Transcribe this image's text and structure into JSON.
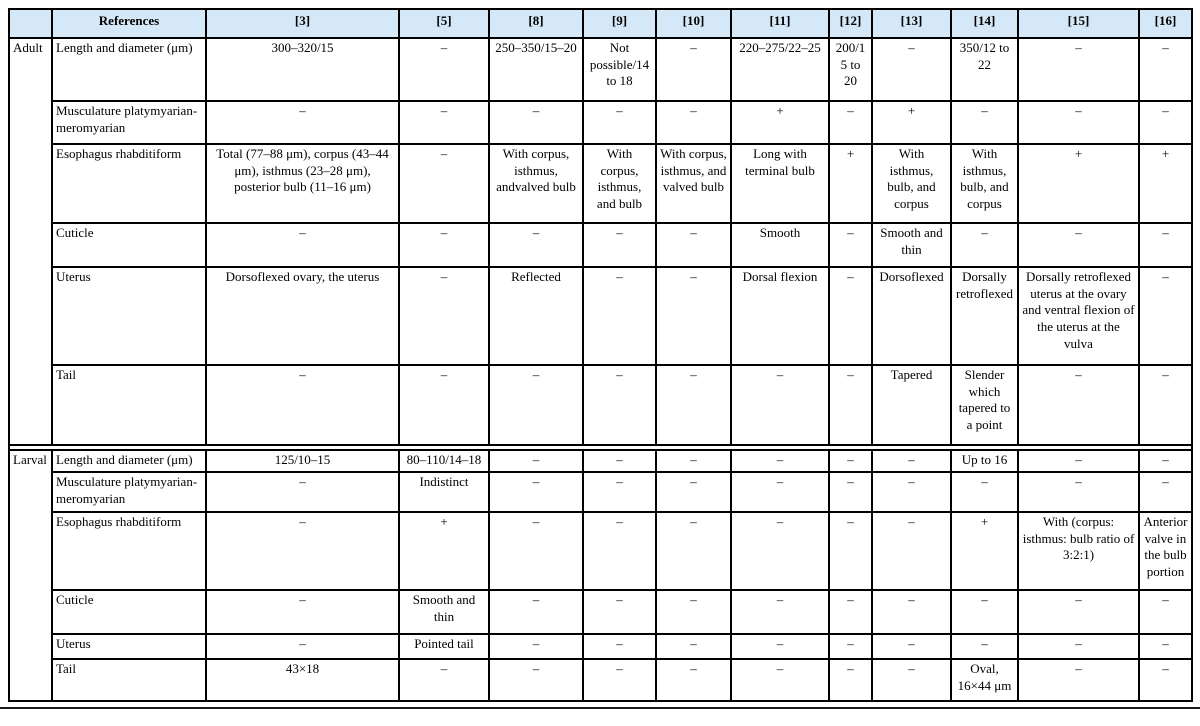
{
  "colors": {
    "header_bg": "#d5e8f7",
    "border": "#000000",
    "text": "#000000"
  },
  "table": {
    "header": {
      "corner": "",
      "references_label": "References",
      "columns": [
        "[3]",
        "[5]",
        "[8]",
        "[9]",
        "[10]",
        "[11]",
        "[12]",
        "[13]",
        "[14]",
        "[15]",
        "[16]"
      ]
    },
    "sections": [
      {
        "group": "Adult",
        "rows": [
          {
            "label": "Length and diameter (μm)",
            "values": [
              "300–320/15",
              "–",
              "250–350/15–20",
              "Not possible/14 to 18",
              "–",
              "220–275/22–25",
              "200/15 to 20",
              "–",
              "350/12 to 22",
              "–",
              "–"
            ]
          },
          {
            "label": "Musculature platymyarian-meromyarian",
            "values": [
              "–",
              "–",
              "–",
              "–",
              "–",
              "+",
              "–",
              "+",
              "–",
              "–",
              "–"
            ]
          },
          {
            "label": "Esophagus rhabditiform",
            "values": [
              "Total (77–88 μm), corpus (43–44 μm), isthmus (23–28 μm), posterior bulb (11–16 μm)",
              "–",
              "With corpus, isthmus, andvalved bulb",
              "With corpus, isthmus, and bulb",
              "With corpus, isthmus, and valved bulb",
              "Long with terminal bulb",
              "+",
              "With isthmus, bulb, and corpus",
              "With isthmus, bulb, and corpus",
              "+",
              "+"
            ]
          },
          {
            "label": "Cuticle",
            "values": [
              "–",
              "–",
              "–",
              "–",
              "–",
              "Smooth",
              "–",
              "Smooth and thin",
              "–",
              "–",
              "–"
            ]
          },
          {
            "label": "Uterus",
            "values": [
              "Dorsoflexed ovary, the uterus",
              "–",
              "Reflected",
              "–",
              "–",
              "Dorsal flexion",
              "–",
              "Dorsoflexed",
              "Dorsally retroflexed",
              "Dorsally retroflexed uterus at the ovary and ventral flexion of the uterus at the vulva",
              "–"
            ]
          },
          {
            "label": "Tail",
            "values": [
              "–",
              "–",
              "–",
              "–",
              "–",
              "–",
              "–",
              "Tapered",
              "Slender which tapered to a point",
              "–",
              "–"
            ]
          }
        ]
      },
      {
        "group": "Larval",
        "rows": [
          {
            "label": "Length and diameter (μm)",
            "values": [
              "125/10–15",
              "80–110/14–18",
              "–",
              "–",
              "–",
              "–",
              "–",
              "–",
              "Up to 16",
              "–",
              "–"
            ]
          },
          {
            "label": "Musculature platymyarian-meromyarian",
            "values": [
              "–",
              "Indistinct",
              "–",
              "–",
              "–",
              "–",
              "–",
              "–",
              "–",
              "–",
              "–"
            ]
          },
          {
            "label": "Esophagus rhabditiform",
            "values": [
              "–",
              "+",
              "–",
              "–",
              "–",
              "–",
              "–",
              "–",
              "+",
              "With (corpus: isthmus: bulb ratio of 3:2:1)",
              "Anterior valve in the bulb portion"
            ]
          },
          {
            "label": "Cuticle",
            "values": [
              "–",
              "Smooth and thin",
              "–",
              "–",
              "–",
              "–",
              "–",
              "–",
              "–",
              "–",
              "–"
            ]
          },
          {
            "label": "Uterus",
            "values": [
              "–",
              "Pointed tail",
              "–",
              "–",
              "–",
              "–",
              "–",
              "–",
              "–",
              "–",
              "–"
            ]
          },
          {
            "label": "Tail",
            "values": [
              "43×18",
              "–",
              "–",
              "–",
              "–",
              "–",
              "–",
              "–",
              "Oval, 16×44 μm",
              "–",
              "–"
            ]
          }
        ]
      }
    ]
  }
}
